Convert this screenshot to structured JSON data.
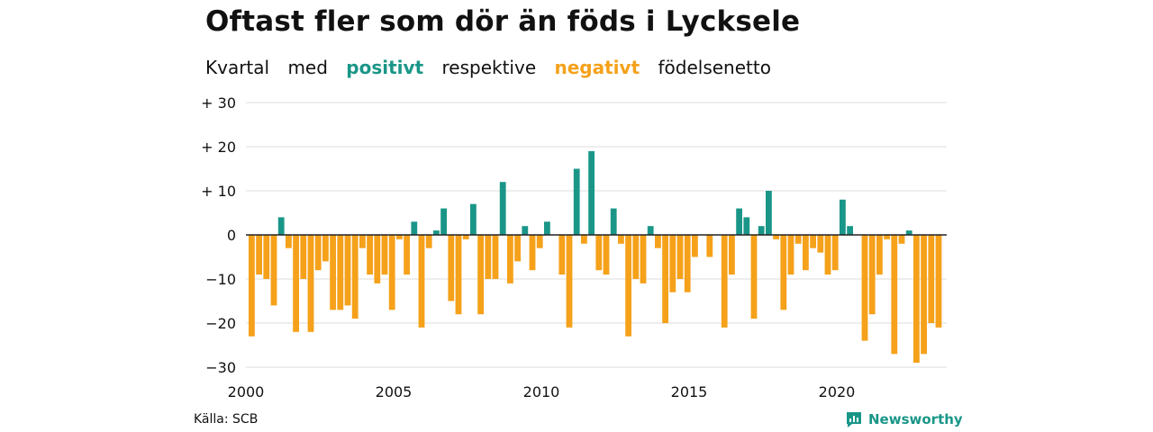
{
  "title": "Oftast fler som dör än föds i Lycksele",
  "subtitle": {
    "parts": [
      "Kvartal",
      "med",
      "positivt",
      "respektive",
      "negativt",
      "födelsenetto"
    ]
  },
  "colors": {
    "positive": "#1a9688",
    "negative": "#f5a11a",
    "grid": "#dddddd",
    "zero_line": "#222222"
  },
  "source": "Källa: SCB",
  "brand": {
    "name": "Newsworthy",
    "icon": "newsworthy-logo-icon"
  },
  "chart_data": {
    "type": "bar",
    "title": "Oftast fler som dör än föds i Lycksele",
    "subtitle": "Kvartal med positivt respektive negativt födelsenetto",
    "xlabel": "",
    "ylabel": "",
    "ylim": [
      -30,
      30
    ],
    "y_ticks": [
      {
        "value": 30,
        "label": "+ 30"
      },
      {
        "value": 20,
        "label": "+ 20"
      },
      {
        "value": 10,
        "label": "+ 10"
      },
      {
        "value": 0,
        "label": "0"
      },
      {
        "value": -10,
        "label": "−10"
      },
      {
        "value": -20,
        "label": "−20"
      },
      {
        "value": -30,
        "label": "−30"
      }
    ],
    "x_ticks": [
      "2000",
      "2005",
      "2010",
      "2015",
      "2020"
    ],
    "grid": true,
    "start_year": 2000,
    "series": [
      {
        "values": [
          -23,
          -9,
          -10,
          -16,
          4,
          -3,
          -22,
          -10,
          -22,
          -8,
          -6,
          -17,
          -17,
          -16,
          -19,
          -3,
          -9,
          -11,
          -9,
          -17,
          -1,
          -9,
          3,
          -21,
          -3,
          1,
          6,
          -15,
          -18,
          -1,
          7,
          -18,
          -10,
          -10,
          12,
          -11,
          -6,
          2,
          -8,
          -3,
          3,
          0,
          -9,
          -21,
          15,
          -2,
          19,
          -8,
          -9,
          6,
          -2,
          -23,
          -10,
          -11,
          2,
          -3,
          -20,
          -13,
          -10,
          -13,
          -5,
          0,
          -5,
          0,
          -21,
          -9,
          6,
          4,
          -19,
          2,
          10,
          -1,
          -17,
          -9,
          -2,
          -8,
          -3,
          -4,
          -9,
          -8,
          8,
          2,
          0,
          -24,
          -18,
          -9,
          -1,
          -27,
          -2,
          1,
          -29,
          -27,
          -20,
          -21
        ]
      }
    ]
  }
}
